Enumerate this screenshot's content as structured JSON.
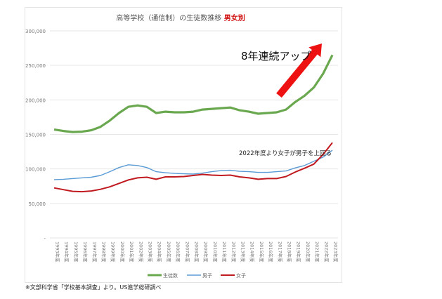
{
  "chart_data": {
    "type": "line",
    "title": "高等学校（通信制）の生徒数推移",
    "title_highlight": "男女別",
    "title_highlight_color": "#d01010",
    "xlabel": "",
    "ylabel": "",
    "ylim": [
      0,
      300000
    ],
    "yticks": [
      0,
      50000,
      100000,
      150000,
      200000,
      250000,
      300000
    ],
    "ytick_labels": [
      "-",
      "50,000",
      "100,000",
      "150,000",
      "200,000",
      "250,000",
      "300,000"
    ],
    "grid": true,
    "legend_position": "bottom",
    "categories": [
      "1993年度",
      "1994年度",
      "1995年度",
      "1996年度",
      "1997年度",
      "1998年度",
      "1999年度",
      "2000年度",
      "2001年度",
      "2002年度",
      "2003年度",
      "2004年度",
      "2005年度",
      "2006年度",
      "2007年度",
      "2008年度",
      "2009年度",
      "2010年度",
      "2011年度",
      "2012年度",
      "2013年度",
      "2014年度",
      "2015年度",
      "2016年度",
      "2017年度",
      "2018年度",
      "2019年度",
      "2020年度",
      "2021年度",
      "2022年度",
      "2023年度"
    ],
    "series": [
      {
        "name": "生徒数",
        "color": "#6aa84f",
        "values": [
          157000,
          155000,
          153500,
          154000,
          156000,
          161000,
          170000,
          181000,
          190000,
          192000,
          190000,
          181000,
          183000,
          182000,
          182000,
          183000,
          186000,
          187000,
          188000,
          189000,
          185000,
          183000,
          180000,
          181000,
          182000,
          186000,
          197000,
          206000,
          218000,
          238000,
          265000
        ]
      },
      {
        "name": "男子",
        "color": "#5b9bd5",
        "values": [
          84500,
          85000,
          86000,
          87000,
          88000,
          90500,
          96000,
          102000,
          106000,
          105000,
          102000,
          96000,
          94500,
          93500,
          93000,
          92500,
          94000,
          96000,
          97500,
          98000,
          96500,
          96000,
          95000,
          95000,
          96000,
          97000,
          101500,
          105000,
          111000,
          117000,
          127000
        ]
      },
      {
        "name": "女子",
        "color": "#c0191f",
        "values": [
          72500,
          70000,
          67500,
          67000,
          68000,
          70500,
          74000,
          79000,
          84000,
          87000,
          88000,
          85000,
          88500,
          88500,
          89000,
          90500,
          92000,
          91000,
          90500,
          91000,
          88500,
          87000,
          85000,
          86000,
          86000,
          89000,
          95500,
          101000,
          107000,
          121000,
          138000
        ]
      }
    ],
    "annotations": [
      "8年連続アップ",
      "2022年度より女子が男子を上回る"
    ],
    "arrow_color": "#ee1111"
  },
  "footnote": "※文部科学省「学校基本調査」より。US進学総研調べ"
}
